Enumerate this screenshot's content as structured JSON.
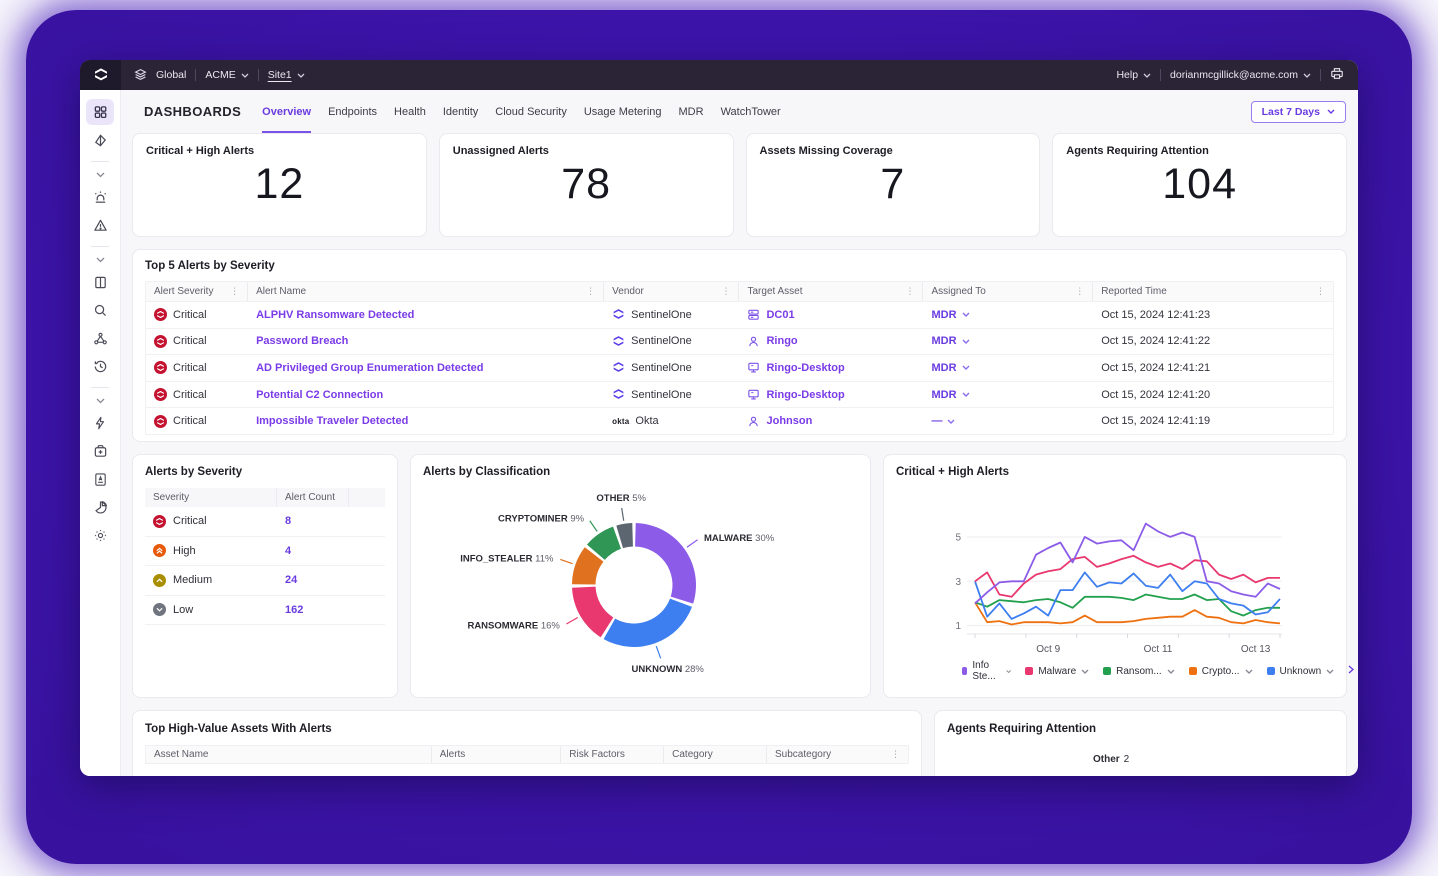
{
  "topbar": {
    "scope": "Global",
    "account": "ACME",
    "site": "Site1",
    "help_label": "Help",
    "user_email": "dorianmcgillick@acme.com"
  },
  "nav": {
    "title": "DASHBOARDS",
    "tabs": [
      {
        "label": "Overview",
        "active": true
      },
      {
        "label": "Endpoints",
        "active": false
      },
      {
        "label": "Health",
        "active": false
      },
      {
        "label": "Identity",
        "active": false
      },
      {
        "label": "Cloud Security",
        "active": false
      },
      {
        "label": "Usage Metering",
        "active": false
      },
      {
        "label": "MDR",
        "active": false
      },
      {
        "label": "WatchTower",
        "active": false
      }
    ],
    "time_range_label": "Last 7 Days"
  },
  "kpis": [
    {
      "label": "Critical + High Alerts",
      "value": "12"
    },
    {
      "label": "Unassigned Alerts",
      "value": "78"
    },
    {
      "label": "Assets Missing Coverage",
      "value": "7"
    },
    {
      "label": "Agents Requiring Attention",
      "value": "104"
    }
  ],
  "top5": {
    "title": "Top 5 Alerts by Severity",
    "columns": [
      "Alert Severity",
      "Alert Name",
      "Vendor",
      "Target Asset",
      "Assigned To",
      "Reported Time"
    ],
    "rows": [
      {
        "severity": "Critical",
        "name": "ALPHV Ransomware Detected",
        "vendor": "SentinelOne",
        "vendor_icon": "sentinelone-icon",
        "asset": "DC01",
        "asset_icon": "server-icon",
        "assigned": "MDR",
        "time": "Oct 15, 2024 12:41:23"
      },
      {
        "severity": "Critical",
        "name": "Password Breach",
        "vendor": "SentinelOne",
        "vendor_icon": "sentinelone-icon",
        "asset": "Ringo",
        "asset_icon": "user-icon",
        "assigned": "MDR",
        "time": "Oct 15, 2024 12:41:22"
      },
      {
        "severity": "Critical",
        "name": "AD Privileged Group Enumeration Detected",
        "vendor": "SentinelOne",
        "vendor_icon": "sentinelone-icon",
        "asset": "Ringo-Desktop",
        "asset_icon": "desktop-icon",
        "assigned": "MDR",
        "time": "Oct 15, 2024 12:41:21"
      },
      {
        "severity": "Critical",
        "name": "Potential C2 Connection",
        "vendor": "SentinelOne",
        "vendor_icon": "sentinelone-icon",
        "asset": "Ringo-Desktop",
        "asset_icon": "desktop-icon",
        "assigned": "MDR",
        "time": "Oct 15, 2024 12:41:20"
      },
      {
        "severity": "Critical",
        "name": "Impossible Traveler Detected",
        "vendor": "Okta",
        "vendor_icon": "okta-icon",
        "asset": "Johnson",
        "asset_icon": "user-icon",
        "assigned": "—",
        "time": "Oct 15, 2024 12:41:19"
      }
    ]
  },
  "severity_panel": {
    "title": "Alerts by Severity",
    "columns": [
      "Severity",
      "Alert Count"
    ],
    "rows": [
      {
        "severity": "Critical",
        "count": "8",
        "color": "#c41230"
      },
      {
        "severity": "High",
        "count": "4",
        "color": "#e8590c"
      },
      {
        "severity": "Medium",
        "count": "24",
        "color": "#a88e00"
      },
      {
        "severity": "Low",
        "count": "162",
        "color": "#70747e"
      }
    ]
  },
  "assets_panel": {
    "title": "Top High-Value Assets With Alerts",
    "columns": [
      "Asset Name",
      "Alerts",
      "Risk Factors",
      "Category",
      "Subcategory"
    ]
  },
  "agents_panel": {
    "title": "Agents Requiring Attention",
    "visible_label": "Other",
    "visible_value": "2"
  },
  "colors": {
    "accent_purple": "#6a3ce0",
    "link_purple": "#7a3be8",
    "critical_red": "#c41230",
    "topbar_bg": "#2b2436"
  },
  "chart_data": [
    {
      "type": "pie",
      "title": "Alerts by Classification",
      "donut": true,
      "slices": [
        {
          "label": "MALWARE",
          "pct": 30,
          "color": "#8c5ce8"
        },
        {
          "label": "UNKNOWN",
          "pct": 28,
          "color": "#3d7ef0"
        },
        {
          "label": "RANSOMWARE",
          "pct": 16,
          "color": "#e8386f"
        },
        {
          "label": "INFO_STEALER",
          "pct": 11,
          "color": "#e0711f"
        },
        {
          "label": "CRYPTOMINER",
          "pct": 9,
          "color": "#2f9655"
        },
        {
          "label": "OTHER",
          "pct": 5,
          "color": "#5c6670"
        }
      ],
      "legend_position": "callout-labels"
    },
    {
      "type": "line",
      "title": "Critical + High Alerts",
      "grid": true,
      "ylim": [
        0.8,
        5.9
      ],
      "y_ticks": [
        "1",
        "3",
        "5"
      ],
      "y_tick_values": [
        1,
        3,
        5
      ],
      "x_ticks": [
        {
          "label": "Oct 9",
          "index": 6
        },
        {
          "label": "Oct 11",
          "index": 15
        },
        {
          "label": "Oct 13",
          "index": 23
        }
      ],
      "legend_position": "bottom",
      "series": [
        {
          "name": "Info Ste...",
          "color": "#8c5ce8",
          "values": [
            2.0,
            2.5,
            2.95,
            3.0,
            3.0,
            4.2,
            4.5,
            4.75,
            3.85,
            5.0,
            4.7,
            4.8,
            4.85,
            4.4,
            5.6,
            5.25,
            5.0,
            5.2,
            5.0,
            3.0,
            2.9,
            2.55,
            2.4,
            2.3,
            2.9,
            2.65
          ]
        },
        {
          "name": "Malware",
          "color": "#e8386f",
          "values": [
            3.0,
            3.4,
            2.4,
            2.3,
            2.9,
            3.3,
            3.45,
            3.55,
            4.0,
            4.1,
            3.65,
            3.8,
            4.0,
            4.15,
            3.85,
            3.65,
            3.8,
            3.55,
            3.95,
            3.9,
            3.3,
            3.1,
            3.3,
            2.95,
            3.15,
            3.15
          ]
        },
        {
          "name": "Ransom...",
          "color": "#22a04e",
          "values": [
            2.05,
            1.85,
            2.15,
            2.1,
            2.05,
            2.15,
            2.2,
            2.05,
            1.8,
            2.3,
            2.3,
            2.3,
            2.25,
            2.15,
            2.4,
            2.3,
            2.2,
            2.2,
            2.4,
            2.15,
            2.2,
            1.65,
            1.45,
            1.7,
            1.8,
            1.8
          ]
        },
        {
          "name": "Crypto...",
          "color": "#ee7111",
          "values": [
            2.05,
            1.15,
            1.2,
            1.05,
            1.15,
            1.15,
            1.15,
            1.1,
            1.15,
            1.45,
            1.15,
            1.15,
            1.15,
            1.2,
            1.3,
            1.35,
            1.4,
            1.4,
            1.7,
            1.4,
            1.35,
            1.15,
            1.1,
            1.25,
            1.15,
            1.1
          ]
        },
        {
          "name": "Unknown",
          "color": "#3d7ef0",
          "values": [
            3.0,
            1.4,
            2.0,
            1.3,
            1.55,
            1.85,
            1.45,
            2.6,
            2.6,
            3.4,
            2.75,
            2.95,
            2.9,
            3.35,
            2.8,
            2.7,
            3.3,
            2.55,
            3.0,
            2.9,
            2.2,
            2.0,
            1.9,
            1.5,
            1.6,
            2.2
          ]
        }
      ]
    }
  ]
}
